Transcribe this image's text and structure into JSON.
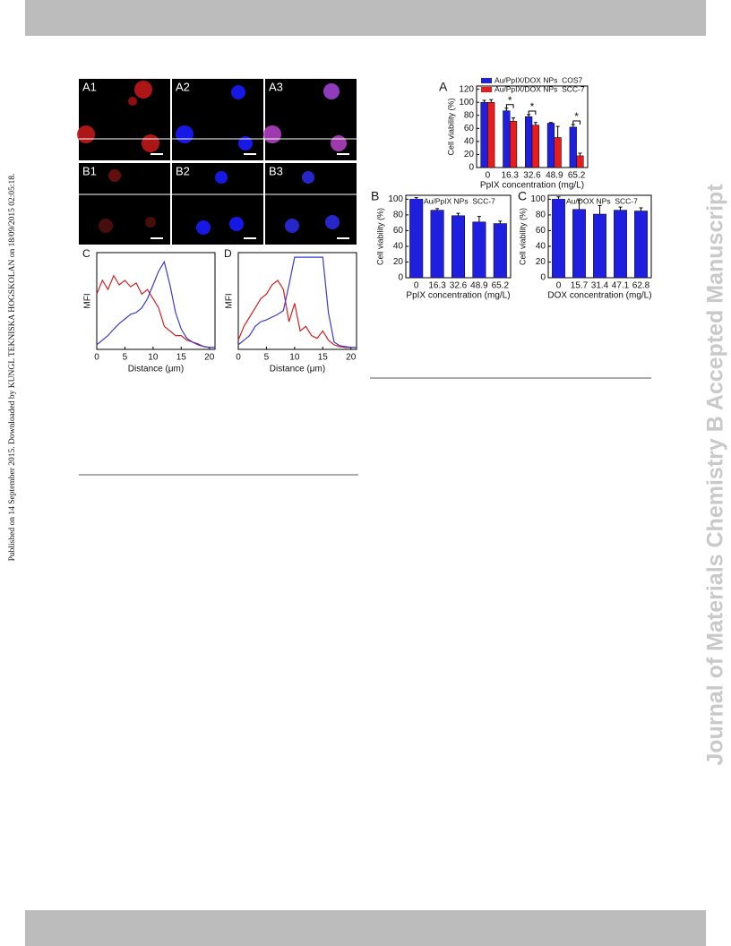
{
  "side_note": "Published on 14 September 2015. Downloaded by KUNGL TEKNISKA HOGSKOLAN on 18/09/2015 02:05:18.",
  "watermark": "Journal of Materials Chemistry B Accepted Manuscript",
  "micrographs": [
    "A1",
    "A2",
    "A3",
    "B1",
    "B2",
    "B3"
  ],
  "profiles": [
    {
      "type": "line",
      "label": "C",
      "x_label": "Distance (μm)",
      "y_label": "MFI",
      "xlim": [
        0,
        21
      ],
      "xticks": [
        0,
        5,
        10,
        15,
        20
      ],
      "ylim": [
        0,
        105
      ],
      "x": [
        0,
        1,
        2,
        3,
        4,
        5,
        6,
        7,
        8,
        9,
        10,
        11,
        12,
        13,
        14,
        15,
        16,
        17,
        18,
        19,
        20,
        21
      ],
      "series": [
        {
          "color": "#d42020",
          "values": [
            60,
            75,
            65,
            80,
            70,
            75,
            68,
            72,
            60,
            65,
            55,
            45,
            25,
            20,
            15,
            15,
            10,
            8,
            6,
            3,
            2,
            2
          ]
        },
        {
          "color": "#3a3ad0",
          "values": [
            5,
            10,
            15,
            22,
            28,
            33,
            38,
            40,
            45,
            55,
            70,
            85,
            95,
            70,
            40,
            22,
            12,
            8,
            5,
            3,
            2,
            2
          ]
        }
      ]
    },
    {
      "type": "line",
      "label": "D",
      "x_label": "Distance (μm)",
      "y_label": "MFI",
      "xlim": [
        0,
        21
      ],
      "xticks": [
        0,
        5,
        10,
        15,
        20
      ],
      "ylim": [
        0,
        105
      ],
      "x": [
        0,
        1,
        2,
        3,
        4,
        5,
        6,
        7,
        8,
        9,
        10,
        11,
        12,
        13,
        14,
        15,
        16,
        17,
        18,
        19,
        20,
        21
      ],
      "series": [
        {
          "color": "#d42020",
          "values": [
            10,
            25,
            35,
            45,
            55,
            60,
            70,
            75,
            65,
            30,
            50,
            20,
            25,
            15,
            12,
            20,
            10,
            5,
            3,
            2,
            2,
            2
          ]
        },
        {
          "color": "#3a3ad0",
          "values": [
            5,
            10,
            15,
            25,
            30,
            32,
            35,
            38,
            42,
            70,
            100,
            100,
            100,
            100,
            100,
            100,
            40,
            8,
            4,
            3,
            2,
            2
          ]
        }
      ]
    }
  ],
  "bar_charts": [
    {
      "type": "bar",
      "label": "A",
      "x_label": "PpIX concentration (mg/L)",
      "y_label": "Cell viability (%)",
      "categories": [
        "0",
        "16.3",
        "32.6",
        "48.9",
        "65.2"
      ],
      "ylim": [
        0,
        125
      ],
      "yticks": [
        0,
        20,
        40,
        60,
        80,
        100,
        120
      ],
      "significance": [
        null,
        "*",
        "*",
        null,
        "*"
      ],
      "series": [
        {
          "name": "Au/PpIX/DOX NPs  COS7",
          "color": "#1f1fe0",
          "values": [
            100,
            87,
            78,
            68,
            62
          ],
          "errors": [
            3,
            4,
            3,
            1,
            4
          ]
        },
        {
          "name": "Au/PpIX/DOX NPs  SCC-7",
          "color": "#e81c1c",
          "values": [
            100,
            71,
            65,
            46,
            18
          ],
          "errors": [
            4,
            5,
            4,
            17,
            4
          ]
        }
      ]
    },
    {
      "type": "bar",
      "label": "B",
      "x_label": "PpIX concentration (mg/L)",
      "y_label": "Cell viability (%)",
      "categories": [
        "0",
        "16.3",
        "32.6",
        "48.9",
        "65.2"
      ],
      "ylim": [
        0,
        105
      ],
      "yticks": [
        0,
        20,
        40,
        60,
        80,
        100
      ],
      "series": [
        {
          "name": "Au/PpIX NPs  SCC-7",
          "color": "#1f1fe0",
          "values": [
            100,
            86,
            79,
            71,
            69
          ],
          "errors": [
            2,
            2,
            3,
            7,
            3
          ]
        }
      ]
    },
    {
      "type": "bar",
      "label": "C",
      "x_label": "DOX concentration (mg/L)",
      "y_label": "Cell viability (%)",
      "categories": [
        "0",
        "15.7",
        "31.4",
        "47.1",
        "62.8"
      ],
      "ylim": [
        0,
        105
      ],
      "yticks": [
        0,
        20,
        40,
        60,
        80,
        100
      ],
      "series": [
        {
          "name": "Au/DOX NPs  SCC-7",
          "color": "#1f1fe0",
          "values": [
            100,
            87,
            81,
            86,
            85
          ],
          "errors": [
            3,
            12,
            11,
            4,
            4
          ]
        }
      ]
    }
  ]
}
